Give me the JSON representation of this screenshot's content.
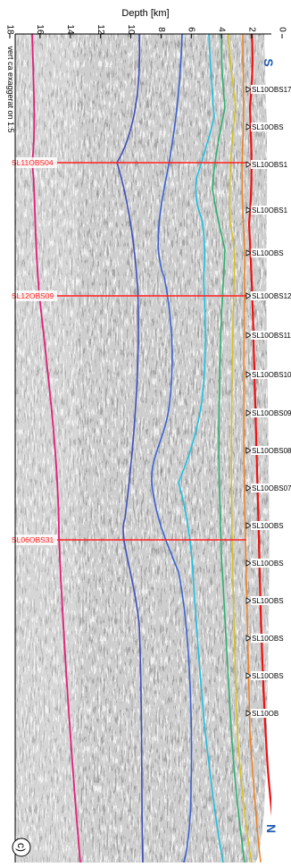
{
  "figure": {
    "panel_label": "c)",
    "depth_axis_title": "Depth [km]",
    "depth_ticks": [
      "0",
      "2",
      "4",
      "6",
      "8",
      "10",
      "12",
      "14",
      "16",
      "18"
    ],
    "exaggeration_note": "vert ca exaggerat on 1:5",
    "direction_start": "S",
    "direction_end": "N",
    "colors": {
      "intersection_line": "#ff2020",
      "moho": "#e0207a",
      "deep_boundary": "#4050b8",
      "mid_boundary": "#3a63d0",
      "cyan_layer": "#20c0e0",
      "green_layer": "#30b070",
      "yellow_layer": "#d8c020",
      "orange_layer": "#f08020",
      "seafloor": "#ee1010",
      "direction_label": "#1f5bb5"
    },
    "obs_stations": [
      "SL10OBS17",
      "SL10OBS",
      "SL10OBS1",
      "SL10OBS1",
      "SL10OBS",
      "SL10OBS12",
      "SL10OBS11",
      "SL10OBS10",
      "SL10OBS09",
      "SL10OBS08",
      "SL10OBS07",
      "SL10OBS",
      "SL10OBS",
      "SL10OBS",
      "SL10OBS",
      "SL10OBS",
      "SL10OB"
    ],
    "crossing_profiles": [
      "SL11OBS04",
      "SL12OBS09",
      "SL06OBS31"
    ]
  }
}
